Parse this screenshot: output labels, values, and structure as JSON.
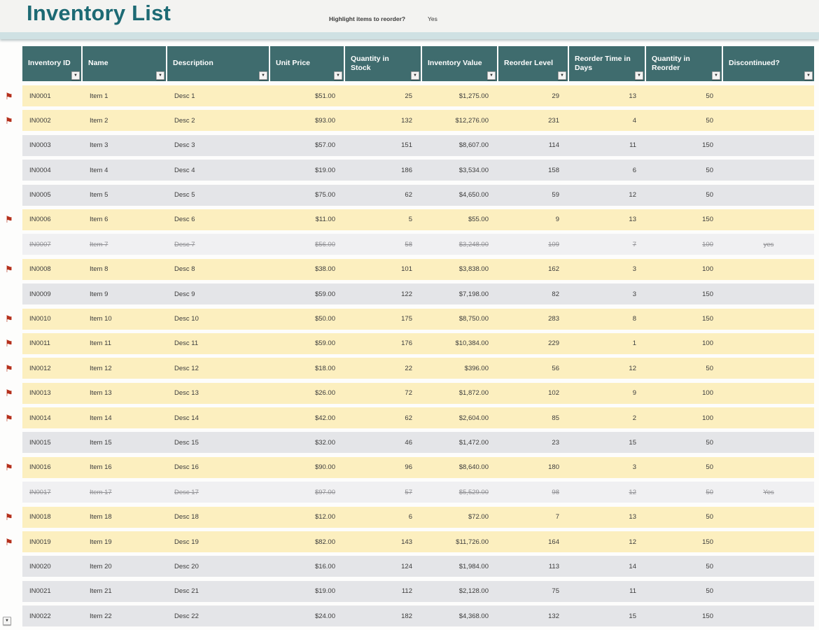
{
  "header": {
    "title": "Inventory List",
    "highlight_label": "Highlight items to reorder?",
    "highlight_value": "Yes"
  },
  "icons": {
    "flag": "⚑",
    "filter_caret": "▼"
  },
  "colors": {
    "title_teal": "#1d6a74",
    "header_teal": "#3f6c6e",
    "strip_teal": "#cfe1e3",
    "row_reorder": "#fcefbf",
    "row_normal": "#e4e5e8",
    "row_discontinued": "#f0f0f2",
    "flag_red": "#b5301c"
  },
  "table": {
    "columns": [
      {
        "key": "id",
        "label": "Inventory ID"
      },
      {
        "key": "name",
        "label": "Name"
      },
      {
        "key": "desc",
        "label": "Description"
      },
      {
        "key": "price",
        "label": "Unit Price"
      },
      {
        "key": "qty",
        "label": "Quantity in Stock"
      },
      {
        "key": "value",
        "label": "Inventory Value"
      },
      {
        "key": "level",
        "label": "Reorder Level"
      },
      {
        "key": "time",
        "label": "Reorder Time in Days"
      },
      {
        "key": "reorder_qty",
        "label": "Quantity in Reorder"
      },
      {
        "key": "disc",
        "label": "Discontinued?"
      }
    ],
    "rows": [
      {
        "id": "IN0001",
        "name": "Item 1",
        "desc": "Desc 1",
        "price": "$51.00",
        "qty": "25",
        "value": "$1,275.00",
        "level": "29",
        "time": "13",
        "reorder_qty": "50",
        "disc": "",
        "state": "reorder"
      },
      {
        "id": "IN0002",
        "name": "Item 2",
        "desc": "Desc 2",
        "price": "$93.00",
        "qty": "132",
        "value": "$12,276.00",
        "level": "231",
        "time": "4",
        "reorder_qty": "50",
        "disc": "",
        "state": "reorder"
      },
      {
        "id": "IN0003",
        "name": "Item 3",
        "desc": "Desc 3",
        "price": "$57.00",
        "qty": "151",
        "value": "$8,607.00",
        "level": "114",
        "time": "11",
        "reorder_qty": "150",
        "disc": "",
        "state": "normal"
      },
      {
        "id": "IN0004",
        "name": "Item 4",
        "desc": "Desc 4",
        "price": "$19.00",
        "qty": "186",
        "value": "$3,534.00",
        "level": "158",
        "time": "6",
        "reorder_qty": "50",
        "disc": "",
        "state": "normal"
      },
      {
        "id": "IN0005",
        "name": "Item 5",
        "desc": "Desc 5",
        "price": "$75.00",
        "qty": "62",
        "value": "$4,650.00",
        "level": "59",
        "time": "12",
        "reorder_qty": "50",
        "disc": "",
        "state": "normal"
      },
      {
        "id": "IN0006",
        "name": "Item 6",
        "desc": "Desc 6",
        "price": "$11.00",
        "qty": "5",
        "value": "$55.00",
        "level": "9",
        "time": "13",
        "reorder_qty": "150",
        "disc": "",
        "state": "reorder"
      },
      {
        "id": "IN0007",
        "name": "Item 7",
        "desc": "Desc 7",
        "price": "$56.00",
        "qty": "58",
        "value": "$3,248.00",
        "level": "109",
        "time": "7",
        "reorder_qty": "100",
        "disc": "yes",
        "state": "discontinued"
      },
      {
        "id": "IN0008",
        "name": "Item 8",
        "desc": "Desc 8",
        "price": "$38.00",
        "qty": "101",
        "value": "$3,838.00",
        "level": "162",
        "time": "3",
        "reorder_qty": "100",
        "disc": "",
        "state": "reorder"
      },
      {
        "id": "IN0009",
        "name": "Item 9",
        "desc": "Desc 9",
        "price": "$59.00",
        "qty": "122",
        "value": "$7,198.00",
        "level": "82",
        "time": "3",
        "reorder_qty": "150",
        "disc": "",
        "state": "normal"
      },
      {
        "id": "IN0010",
        "name": "Item 10",
        "desc": "Desc 10",
        "price": "$50.00",
        "qty": "175",
        "value": "$8,750.00",
        "level": "283",
        "time": "8",
        "reorder_qty": "150",
        "disc": "",
        "state": "reorder"
      },
      {
        "id": "IN0011",
        "name": "Item 11",
        "desc": "Desc 11",
        "price": "$59.00",
        "qty": "176",
        "value": "$10,384.00",
        "level": "229",
        "time": "1",
        "reorder_qty": "100",
        "disc": "",
        "state": "reorder"
      },
      {
        "id": "IN0012",
        "name": "Item 12",
        "desc": "Desc 12",
        "price": "$18.00",
        "qty": "22",
        "value": "$396.00",
        "level": "56",
        "time": "12",
        "reorder_qty": "50",
        "disc": "",
        "state": "reorder"
      },
      {
        "id": "IN0013",
        "name": "Item 13",
        "desc": "Desc 13",
        "price": "$26.00",
        "qty": "72",
        "value": "$1,872.00",
        "level": "102",
        "time": "9",
        "reorder_qty": "100",
        "disc": "",
        "state": "reorder"
      },
      {
        "id": "IN0014",
        "name": "Item 14",
        "desc": "Desc 14",
        "price": "$42.00",
        "qty": "62",
        "value": "$2,604.00",
        "level": "85",
        "time": "2",
        "reorder_qty": "100",
        "disc": "",
        "state": "reorder"
      },
      {
        "id": "IN0015",
        "name": "Item 15",
        "desc": "Desc 15",
        "price": "$32.00",
        "qty": "46",
        "value": "$1,472.00",
        "level": "23",
        "time": "15",
        "reorder_qty": "50",
        "disc": "",
        "state": "normal"
      },
      {
        "id": "IN0016",
        "name": "Item 16",
        "desc": "Desc 16",
        "price": "$90.00",
        "qty": "96",
        "value": "$8,640.00",
        "level": "180",
        "time": "3",
        "reorder_qty": "50",
        "disc": "",
        "state": "reorder"
      },
      {
        "id": "IN0017",
        "name": "Item 17",
        "desc": "Desc 17",
        "price": "$97.00",
        "qty": "57",
        "value": "$5,529.00",
        "level": "98",
        "time": "12",
        "reorder_qty": "50",
        "disc": "Yes",
        "state": "discontinued"
      },
      {
        "id": "IN0018",
        "name": "Item 18",
        "desc": "Desc 18",
        "price": "$12.00",
        "qty": "6",
        "value": "$72.00",
        "level": "7",
        "time": "13",
        "reorder_qty": "50",
        "disc": "",
        "state": "reorder"
      },
      {
        "id": "IN0019",
        "name": "Item 19",
        "desc": "Desc 19",
        "price": "$82.00",
        "qty": "143",
        "value": "$11,726.00",
        "level": "164",
        "time": "12",
        "reorder_qty": "150",
        "disc": "",
        "state": "reorder"
      },
      {
        "id": "IN0020",
        "name": "Item 20",
        "desc": "Desc 20",
        "price": "$16.00",
        "qty": "124",
        "value": "$1,984.00",
        "level": "113",
        "time": "14",
        "reorder_qty": "50",
        "disc": "",
        "state": "normal"
      },
      {
        "id": "IN0021",
        "name": "Item 21",
        "desc": "Desc 21",
        "price": "$19.00",
        "qty": "112",
        "value": "$2,128.00",
        "level": "75",
        "time": "11",
        "reorder_qty": "50",
        "disc": "",
        "state": "normal"
      },
      {
        "id": "IN0022",
        "name": "Item 22",
        "desc": "Desc 22",
        "price": "$24.00",
        "qty": "182",
        "value": "$4,368.00",
        "level": "132",
        "time": "15",
        "reorder_qty": "150",
        "disc": "",
        "state": "normal"
      }
    ]
  }
}
